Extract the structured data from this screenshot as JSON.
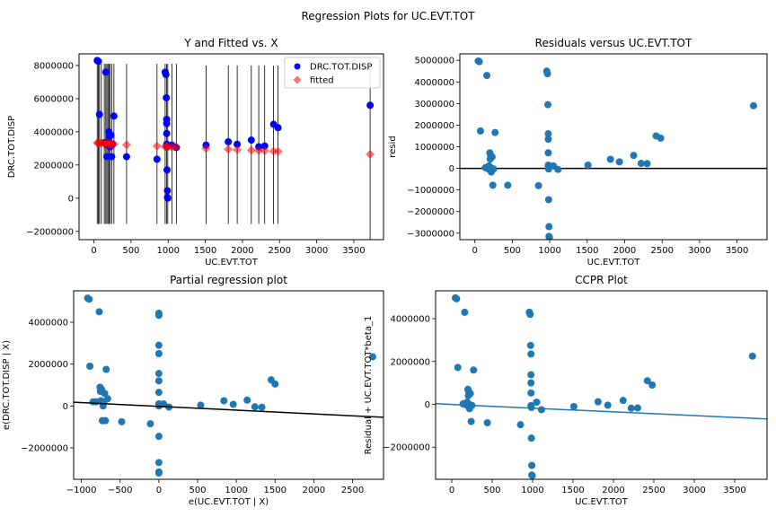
{
  "figure": {
    "title": "Regression Plots for UC.EVT.TOT"
  },
  "colors": {
    "observed": "#0000ff",
    "fitted": "#ff0000",
    "points": "#1f77b4",
    "ccpr_line": "#1f77b4",
    "fit_line": "#000000",
    "errorbar": "#000000"
  },
  "chart_data": [
    {
      "type": "scatter",
      "title": "Y and Fitted vs. X",
      "xlabel": "UC.EVT.TOT",
      "ylabel": "DRC.TOT.DISP",
      "xlim": [
        -200,
        3900
      ],
      "ylim": [
        -2500000,
        8700000
      ],
      "xticks": [
        0,
        500,
        1000,
        1500,
        2000,
        2500,
        3000,
        3500
      ],
      "yticks": [
        -2000000,
        0,
        2000000,
        4000000,
        6000000,
        8000000
      ],
      "xtick_labels": [
        "0",
        "500",
        "1000",
        "1500",
        "2000",
        "2500",
        "3000",
        "3500"
      ],
      "ytick_labels": [
        "−2000000",
        "0",
        "2000000",
        "4000000",
        "6000000",
        "8000000"
      ],
      "legend": {
        "position": "top-right",
        "entries": [
          "DRC.TOT.DISP",
          "fitted"
        ]
      },
      "series": [
        {
          "name": "DRC.TOT.DISP",
          "marker": "circle",
          "x": [
            45,
            60,
            75,
            140,
            160,
            175,
            180,
            190,
            200,
            205,
            210,
            215,
            220,
            230,
            240,
            250,
            270,
            440,
            850,
            960,
            970,
            975,
            980,
            980,
            980,
            980,
            980,
            985,
            985,
            990,
            990,
            995,
            1050,
            1110,
            1510,
            1810,
            1930,
            2120,
            2220,
            2300,
            2420,
            2480,
            3720
          ],
          "y": [
            8300000,
            8250000,
            5050000,
            3350000,
            7600000,
            2500000,
            3200000,
            3400000,
            4000000,
            3700000,
            3900000,
            3300000,
            3100000,
            3800000,
            2500000,
            3250000,
            4950000,
            2500000,
            2350000,
            7600000,
            7450000,
            6050000,
            4750000,
            4500000,
            3900000,
            3250000,
            3150000,
            3100000,
            1700000,
            450000,
            50000,
            0,
            3200000,
            3050000,
            3200000,
            3400000,
            3250000,
            3500000,
            3100000,
            3150000,
            4450000,
            4250000,
            5600000
          ]
        },
        {
          "name": "fitted",
          "marker": "diamond",
          "x": [
            45,
            60,
            75,
            100,
            140,
            160,
            175,
            190,
            205,
            220,
            240,
            270,
            440,
            850,
            960,
            980,
            995,
            1050,
            1110,
            1510,
            1810,
            1930,
            2120,
            2220,
            2300,
            2420,
            2480,
            3720
          ],
          "y": [
            3330000,
            3320000,
            3320000,
            3310000,
            3300000,
            3295000,
            3290000,
            3285000,
            3280000,
            3275000,
            3270000,
            3260000,
            3220000,
            3140000,
            3110000,
            3105000,
            3100000,
            3090000,
            3080000,
            3000000,
            2950000,
            2920000,
            2890000,
            2870000,
            2860000,
            2830000,
            2820000,
            2650000
          ]
        }
      ],
      "errorbars": {
        "x": [
          45,
          60,
          75,
          100,
          140,
          160,
          175,
          190,
          205,
          220,
          240,
          270,
          440,
          850,
          960,
          980,
          995,
          1050,
          1110,
          1510,
          1810,
          1930,
          2120,
          2220,
          2300,
          2420,
          2480,
          3720
        ],
        "low": [
          -1550000,
          -1550000,
          -1550000,
          -1550000,
          -1550000,
          -1550000,
          -1550000,
          -1550000,
          -1550000,
          -1550000,
          -1550000,
          -1550000,
          -1550000,
          -1550000,
          -1550000,
          -1550000,
          -1550000,
          -1550000,
          -1550000,
          -1550000,
          -1550000,
          -1550000,
          -1550000,
          -1550000,
          -1550000,
          -1550000,
          -1550000,
          -2600000
        ],
        "high": [
          8100000,
          8100000,
          8100000,
          8100000,
          8100000,
          8100000,
          8100000,
          8100000,
          8100000,
          8100000,
          8100000,
          8100000,
          8100000,
          8100000,
          8100000,
          8100000,
          8100000,
          8100000,
          8100000,
          8000000,
          8000000,
          8000000,
          8000000,
          8000000,
          8000000,
          8000000,
          8000000,
          7900000
        ]
      }
    },
    {
      "type": "scatter",
      "title": "Residuals versus UC.EVT.TOT",
      "xlabel": "UC.EVT.TOT",
      "ylabel": "resid",
      "xlim": [
        -200,
        3900
      ],
      "ylim": [
        -3300000,
        5300000
      ],
      "xticks": [
        0,
        500,
        1000,
        1500,
        2000,
        2500,
        3000,
        3500
      ],
      "yticks": [
        -3000000,
        -2000000,
        -1000000,
        0,
        1000000,
        2000000,
        3000000,
        4000000,
        5000000
      ],
      "xtick_labels": [
        "0",
        "500",
        "1000",
        "1500",
        "2000",
        "2500",
        "3000",
        "3500"
      ],
      "ytick_labels": [
        "−3000000",
        "−2000000",
        "−1000000",
        "0",
        "1000000",
        "2000000",
        "3000000",
        "4000000",
        "5000000"
      ],
      "hline": 0,
      "series": [
        {
          "x": [
            45,
            60,
            75,
            140,
            160,
            175,
            180,
            190,
            200,
            205,
            210,
            215,
            220,
            230,
            240,
            250,
            270,
            440,
            850,
            960,
            970,
            975,
            980,
            980,
            980,
            980,
            980,
            985,
            985,
            990,
            990,
            995,
            1050,
            1110,
            1510,
            1810,
            1930,
            2120,
            2220,
            2300,
            2420,
            2480,
            3720
          ],
          "y": [
            4970000,
            4940000,
            1730000,
            30000,
            4300000,
            80000,
            -30000,
            110000,
            720000,
            430000,
            620000,
            20000,
            -170000,
            530000,
            -780000,
            -30000,
            1660000,
            -780000,
            -800000,
            4500000,
            4380000,
            2950000,
            1600000,
            1350000,
            720000,
            150000,
            20000,
            -30000,
            -1450000,
            -2700000,
            -3150000,
            -3200000,
            110000,
            -50000,
            150000,
            420000,
            300000,
            600000,
            230000,
            220000,
            1500000,
            1400000,
            2900000
          ]
        }
      ]
    },
    {
      "type": "scatter",
      "title": "Partial regression plot",
      "xlabel": "e(UC.EVT.TOT | X)",
      "ylabel": "e(DRC.TOT.DISP | X)",
      "xlim": [
        -1100,
        2900
      ],
      "ylim": [
        -3500000,
        5500000
      ],
      "xticks": [
        -1000,
        -500,
        0,
        500,
        1000,
        1500,
        2000,
        2500
      ],
      "yticks": [
        -2000000,
        0,
        2000000,
        4000000
      ],
      "xtick_labels": [
        "−1000",
        "−500",
        "0",
        "500",
        "1000",
        "1500",
        "2000",
        "2500"
      ],
      "ytick_labels": [
        "−2000000",
        "0",
        "2000000",
        "4000000"
      ],
      "fit_line": {
        "x": [
          -1100,
          2900
        ],
        "y": [
          180000,
          -540000
        ]
      },
      "series": [
        {
          "x": [
            -920,
            -900,
            -890,
            -850,
            -810,
            -770,
            -760,
            -755,
            -750,
            -740,
            -730,
            -720,
            -710,
            -700,
            -690,
            -680,
            -660,
            -480,
            -110,
            0,
            0,
            0,
            0,
            0,
            0,
            0,
            0,
            0,
            0,
            0,
            0,
            0,
            60,
            130,
            540,
            840,
            960,
            1140,
            1240,
            1330,
            1450,
            1500,
            2760
          ],
          "y": [
            5150000,
            5100000,
            1900000,
            200000,
            200000,
            4500000,
            900000,
            700000,
            250000,
            800000,
            -700000,
            0,
            200000,
            600000,
            -700000,
            1750000,
            350000,
            -750000,
            -850000,
            4430000,
            4330000,
            2900000,
            2500000,
            1550000,
            1200000,
            650000,
            100000,
            0,
            -1450000,
            -2700000,
            -3150000,
            -3200000,
            100000,
            -50000,
            40000,
            250000,
            80000,
            280000,
            -40000,
            -60000,
            1250000,
            1050000,
            2350000
          ]
        }
      ]
    },
    {
      "type": "scatter",
      "title": "CCPR Plot",
      "xlabel": "UC.EVT.TOT",
      "ylabel": "Residual + UC.EVT.TOT*beta_1",
      "xlim": [
        -200,
        3900
      ],
      "ylim": [
        -3500000,
        5300000
      ],
      "xticks": [
        0,
        500,
        1000,
        1500,
        2000,
        2500,
        3000,
        3500
      ],
      "yticks": [
        -2000000,
        0,
        2000000,
        4000000
      ],
      "xtick_labels": [
        "0",
        "500",
        "1000",
        "1500",
        "2000",
        "2500",
        "3000",
        "3500"
      ],
      "ytick_labels": [
        "−2000000",
        "0",
        "2000000",
        "4000000"
      ],
      "fit_line": {
        "x": [
          -200,
          3900
        ],
        "y": [
          30000,
          -680000
        ]
      },
      "series": [
        {
          "x": [
            45,
            60,
            75,
            140,
            160,
            175,
            180,
            190,
            200,
            205,
            210,
            215,
            220,
            230,
            240,
            250,
            270,
            440,
            850,
            960,
            970,
            975,
            980,
            980,
            980,
            980,
            980,
            985,
            985,
            990,
            990,
            995,
            1050,
            1110,
            1510,
            1810,
            1930,
            2120,
            2220,
            2300,
            2420,
            2480,
            3720
          ],
          "y": [
            4970000,
            4930000,
            1720000,
            20000,
            4300000,
            50000,
            -30000,
            100000,
            700000,
            400000,
            600000,
            0,
            -200000,
            500000,
            -800000,
            -50000,
            1600000,
            -860000,
            -950000,
            4300000,
            4200000,
            2750000,
            2350000,
            1380000,
            1000000,
            530000,
            -60000,
            -150000,
            -1580000,
            -2850000,
            -3300000,
            -3330000,
            100000,
            -250000,
            -100000,
            120000,
            -40000,
            180000,
            -180000,
            -170000,
            1100000,
            900000,
            2250000
          ]
        }
      ]
    }
  ]
}
